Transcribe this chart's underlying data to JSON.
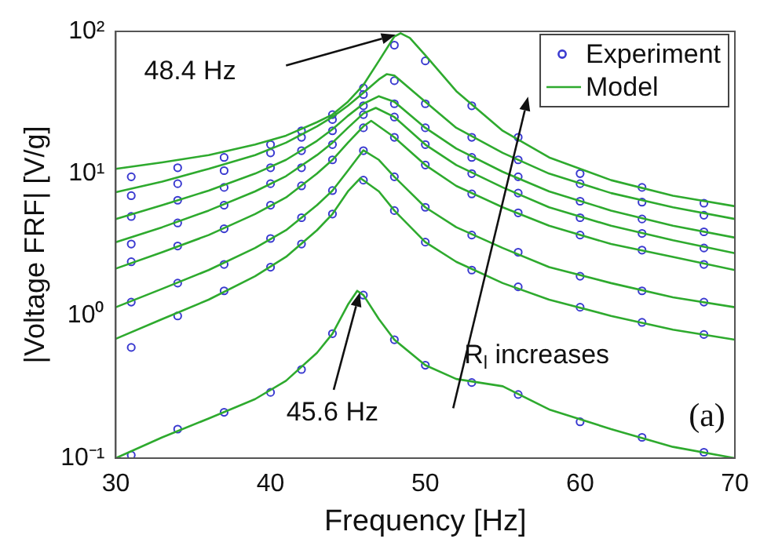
{
  "chart_data": {
    "type": "line",
    "xlabel": "Frequency [Hz]",
    "ylabel": "|Voltage FRF| [V/g]",
    "xlim": [
      30,
      70
    ],
    "xticks": [
      30,
      40,
      50,
      60,
      70
    ],
    "ylim": [
      0.1,
      100
    ],
    "yticks": [
      {
        "value": 0.1,
        "label": "10⁻¹"
      },
      {
        "value": 1,
        "label": "10⁰"
      },
      {
        "value": 10,
        "label": "10¹"
      },
      {
        "value": 100,
        "label": "10²"
      }
    ],
    "log": "y",
    "grid": false,
    "legend": "top right",
    "annotations": [
      "48.4 Hz",
      "45.6 Hz",
      "R$_{l}$ increases",
      "(a)"
    ],
    "series": [
      {
        "name": "Experiment",
        "type": "scatter",
        "color": "#3a3ad0",
        "x": [
          31,
          34,
          37,
          40,
          42,
          44,
          46,
          48,
          50,
          53,
          56,
          60,
          64,
          68
        ],
        "values": [
          9.5,
          11,
          13,
          16,
          20,
          26,
          40,
          80,
          62,
          30,
          18,
          10,
          8,
          6.2
        ]
      },
      {
        "type": "scatter",
        "color": "#3a3ad0",
        "x": [
          31,
          34,
          37,
          40,
          42,
          44,
          46,
          48,
          50,
          53,
          56,
          60,
          64,
          68
        ],
        "values": [
          7,
          8.5,
          10.5,
          14,
          18,
          24,
          36,
          45,
          31,
          18,
          12.5,
          8.5,
          6.3,
          5.1
        ]
      },
      {
        "type": "scatter",
        "color": "#3a3ad0",
        "x": [
          31,
          34,
          37,
          40,
          42,
          44,
          46,
          48,
          50,
          53,
          56,
          60,
          64,
          68
        ],
        "values": [
          5,
          6.5,
          8,
          11,
          14.5,
          20,
          30,
          31,
          21,
          13,
          9.5,
          6.4,
          4.8,
          3.9
        ]
      },
      {
        "type": "scatter",
        "color": "#3a3ad0",
        "x": [
          31,
          34,
          37,
          40,
          42,
          44,
          46,
          48,
          50,
          53,
          56,
          60,
          64,
          68
        ],
        "values": [
          3.2,
          4.5,
          6,
          8.5,
          11,
          16,
          26,
          25,
          16,
          10,
          7.3,
          4.9,
          3.8,
          3
        ]
      },
      {
        "type": "scatter",
        "color": "#3a3ad0",
        "x": [
          31,
          34,
          37,
          40,
          42,
          44,
          46,
          48,
          50,
          53,
          56,
          60,
          64,
          68
        ],
        "values": [
          2.4,
          3.1,
          4.1,
          6,
          8.2,
          12.5,
          21,
          18,
          11.5,
          7.2,
          5.3,
          3.7,
          2.9,
          2.3
        ]
      },
      {
        "type": "scatter",
        "color": "#3a3ad0",
        "x": [
          31,
          34,
          37,
          40,
          42,
          44,
          46,
          48,
          50,
          53,
          56,
          60,
          64,
          68
        ],
        "values": [
          1.25,
          1.7,
          2.3,
          3.5,
          4.9,
          7.6,
          14.5,
          9.5,
          5.8,
          3.7,
          2.8,
          1.9,
          1.5,
          1.25
        ]
      },
      {
        "type": "scatter",
        "color": "#3a3ad0",
        "x": [
          31,
          34,
          37,
          40,
          42,
          44,
          46,
          48,
          50,
          53,
          56,
          60,
          64,
          68
        ],
        "values": [
          0.6,
          1,
          1.5,
          2.2,
          3.2,
          5.2,
          9,
          5.5,
          3.3,
          2.1,
          1.6,
          1.15,
          0.9,
          0.74
        ]
      },
      {
        "type": "scatter",
        "color": "#3a3ad0",
        "x": [
          31,
          34,
          37,
          40,
          42,
          44,
          46,
          48,
          50,
          53,
          56,
          60,
          64,
          68
        ],
        "values": [
          0.105,
          0.16,
          0.21,
          0.29,
          0.42,
          0.75,
          1.4,
          0.68,
          0.45,
          0.34,
          0.28,
          0.18,
          0.14,
          0.11
        ]
      },
      {
        "name": "Model",
        "color": "#2eaa2e",
        "x": [
          30,
          33,
          36,
          39,
          41,
          43,
          44,
          45,
          46,
          47,
          48,
          48.4,
          49,
          50,
          52,
          55,
          58,
          62,
          66,
          70
        ],
        "values": [
          10.8,
          12,
          13.5,
          16,
          18.5,
          23,
          26,
          32,
          42,
          62,
          92,
          97,
          90,
          68,
          38,
          20,
          13,
          9,
          7,
          5.9
        ]
      },
      {
        "color": "#2eaa2e",
        "x": [
          30,
          33,
          36,
          39,
          41,
          43,
          44,
          45,
          46,
          47,
          47.5,
          48,
          50,
          52,
          55,
          58,
          62,
          66,
          70
        ],
        "values": [
          7.4,
          8.8,
          10.8,
          13.5,
          16.5,
          21.5,
          25,
          30,
          37,
          46,
          50,
          49,
          32,
          21,
          14,
          10,
          7.3,
          5.8,
          4.8
        ]
      },
      {
        "color": "#2eaa2e",
        "x": [
          30,
          33,
          36,
          39,
          41,
          43,
          44,
          45,
          46,
          47,
          48,
          50,
          52,
          55,
          58,
          62,
          66,
          70
        ],
        "values": [
          4.8,
          6,
          7.6,
          10,
          12.5,
          17,
          20.5,
          25.5,
          31,
          35,
          32,
          21,
          15,
          10.3,
          7.5,
          5.5,
          4.3,
          3.55
        ]
      },
      {
        "color": "#2eaa2e",
        "x": [
          30,
          33,
          36,
          39,
          41,
          43,
          44,
          45,
          46,
          46.8,
          48,
          50,
          52,
          55,
          58,
          62,
          66,
          70
        ],
        "values": [
          3.3,
          4.2,
          5.5,
          7.5,
          9.6,
          13.5,
          16.5,
          21,
          26.5,
          29,
          25,
          16,
          11.5,
          8,
          5.8,
          4.3,
          3.4,
          2.76
        ]
      },
      {
        "color": "#2eaa2e",
        "x": [
          30,
          33,
          36,
          39,
          41,
          43,
          44,
          45,
          46,
          46.5,
          48,
          50,
          52,
          55,
          58,
          62,
          66,
          70
        ],
        "values": [
          2.15,
          2.8,
          3.7,
          5.2,
          6.8,
          10,
          12.5,
          16.5,
          21.5,
          23.5,
          18,
          11.5,
          8.2,
          5.8,
          4.3,
          3.2,
          2.6,
          2.1
        ]
      },
      {
        "color": "#2eaa2e",
        "x": [
          30,
          33,
          36,
          39,
          41,
          43,
          44,
          45,
          46,
          47,
          48,
          50,
          52,
          55,
          58,
          62,
          66,
          70
        ],
        "values": [
          1.15,
          1.55,
          2.1,
          3,
          4,
          6,
          7.6,
          10.5,
          14.6,
          12.5,
          9.5,
          5.8,
          4.2,
          3,
          2.2,
          1.7,
          1.35,
          1.15
        ]
      },
      {
        "color": "#2eaa2e",
        "x": [
          30,
          33,
          36,
          39,
          41,
          43,
          44,
          45,
          45.8,
          47,
          48,
          50,
          52,
          55,
          58,
          62,
          66,
          70
        ],
        "values": [
          0.69,
          0.95,
          1.3,
          1.9,
          2.6,
          4,
          5.2,
          7.5,
          9.3,
          7.5,
          5.5,
          3.3,
          2.4,
          1.7,
          1.3,
          1,
          0.8,
          0.68
        ]
      },
      {
        "color": "#2eaa2e",
        "x": [
          30,
          33,
          36,
          39,
          41,
          43,
          44,
          45,
          45.6,
          46,
          47,
          48,
          50,
          52,
          55,
          58,
          62,
          66,
          70
        ],
        "values": [
          0.1,
          0.14,
          0.19,
          0.26,
          0.35,
          0.55,
          0.75,
          1.2,
          1.5,
          1.4,
          0.95,
          0.68,
          0.45,
          0.36,
          0.32,
          0.22,
          0.16,
          0.12,
          0.1
        ]
      }
    ]
  }
}
